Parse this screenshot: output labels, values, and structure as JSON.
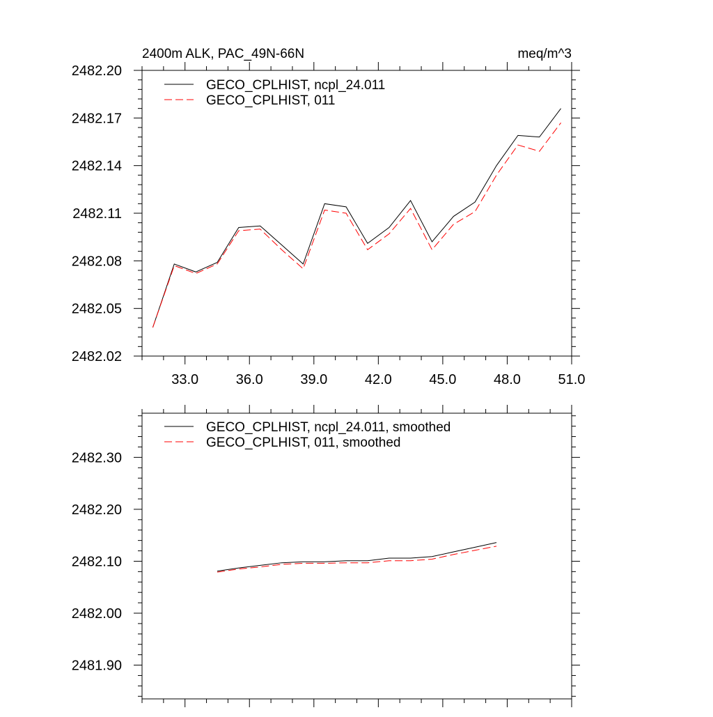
{
  "chart_data": [
    {
      "type": "line",
      "title": "2400m ALK, PAC_49N-66N",
      "units": "meq/m^3",
      "xlabel": "",
      "ylabel": "",
      "xlim": [
        31.0,
        51.0
      ],
      "ylim": [
        2482.02,
        2482.2
      ],
      "xticks": [
        33.0,
        36.0,
        39.0,
        42.0,
        45.0,
        48.0,
        51.0
      ],
      "xtick_labels": [
        "33.0",
        "36.0",
        "39.0",
        "42.0",
        "45.0",
        "48.0",
        "51.0"
      ],
      "yticks": [
        2482.02,
        2482.05,
        2482.08,
        2482.11,
        2482.14,
        2482.17,
        2482.2
      ],
      "ytick_labels": [
        "2482.02",
        "2482.05",
        "2482.08",
        "2482.11",
        "2482.14",
        "2482.17",
        "2482.20"
      ],
      "legend_position": "top-left",
      "grid": false,
      "x": [
        31.5,
        32.5,
        33.5,
        34.5,
        35.5,
        36.5,
        37.5,
        38.5,
        39.5,
        40.5,
        41.5,
        42.5,
        43.5,
        44.5,
        45.5,
        46.5,
        47.5,
        48.5,
        49.5,
        50.5
      ],
      "series": [
        {
          "name": "GECO_CPLHIST, ncpl_24.011",
          "color": "#000000",
          "dash": "solid",
          "values": [
            2482.038,
            2482.078,
            2482.073,
            2482.079,
            2482.101,
            2482.102,
            2482.09,
            2482.078,
            2482.116,
            2482.114,
            2482.091,
            2482.101,
            2482.118,
            2482.092,
            2482.108,
            2482.117,
            2482.14,
            2482.159,
            2482.158,
            2482.176
          ]
        },
        {
          "name": "GECO_CPLHIST, 011",
          "color": "#ff0000",
          "dash": "dashed",
          "values": [
            2482.038,
            2482.077,
            2482.072,
            2482.078,
            2482.099,
            2482.1,
            2482.087,
            2482.075,
            2482.112,
            2482.11,
            2482.087,
            2482.097,
            2482.113,
            2482.087,
            2482.103,
            2482.111,
            2482.134,
            2482.153,
            2482.149,
            2482.167
          ]
        }
      ]
    },
    {
      "type": "line",
      "title": "",
      "xlabel": "",
      "ylabel": "",
      "xlim": [
        31.0,
        51.0
      ],
      "ylim": [
        2481.835,
        2482.385
      ],
      "xticks": [
        33.0,
        36.0,
        39.0,
        42.0,
        45.0,
        48.0,
        51.0
      ],
      "xtick_labels": [],
      "yticks": [
        2481.9,
        2482.0,
        2482.1,
        2482.2,
        2482.3
      ],
      "ytick_labels": [
        "2481.90",
        "2482.00",
        "2482.10",
        "2482.20",
        "2482.30"
      ],
      "legend_position": "top-left",
      "grid": false,
      "x": [
        34.5,
        35.5,
        36.5,
        37.5,
        38.5,
        39.5,
        40.5,
        41.5,
        42.5,
        43.5,
        44.5,
        45.5,
        46.5,
        47.5
      ],
      "series": [
        {
          "name": "GECO_CPLHIST, ncpl_24.011, smoothed",
          "color": "#000000",
          "dash": "solid",
          "values": [
            2482.081,
            2482.087,
            2482.092,
            2482.097,
            2482.099,
            2482.099,
            2482.101,
            2482.101,
            2482.106,
            2482.106,
            2482.109,
            2482.118,
            2482.127,
            2482.136
          ]
        },
        {
          "name": "GECO_CPLHIST, 011, smoothed",
          "color": "#ff0000",
          "dash": "dashed",
          "values": [
            2482.079,
            2482.085,
            2482.089,
            2482.094,
            2482.096,
            2482.096,
            2482.097,
            2482.097,
            2482.101,
            2482.101,
            2482.104,
            2482.113,
            2482.121,
            2482.129
          ]
        }
      ]
    }
  ]
}
